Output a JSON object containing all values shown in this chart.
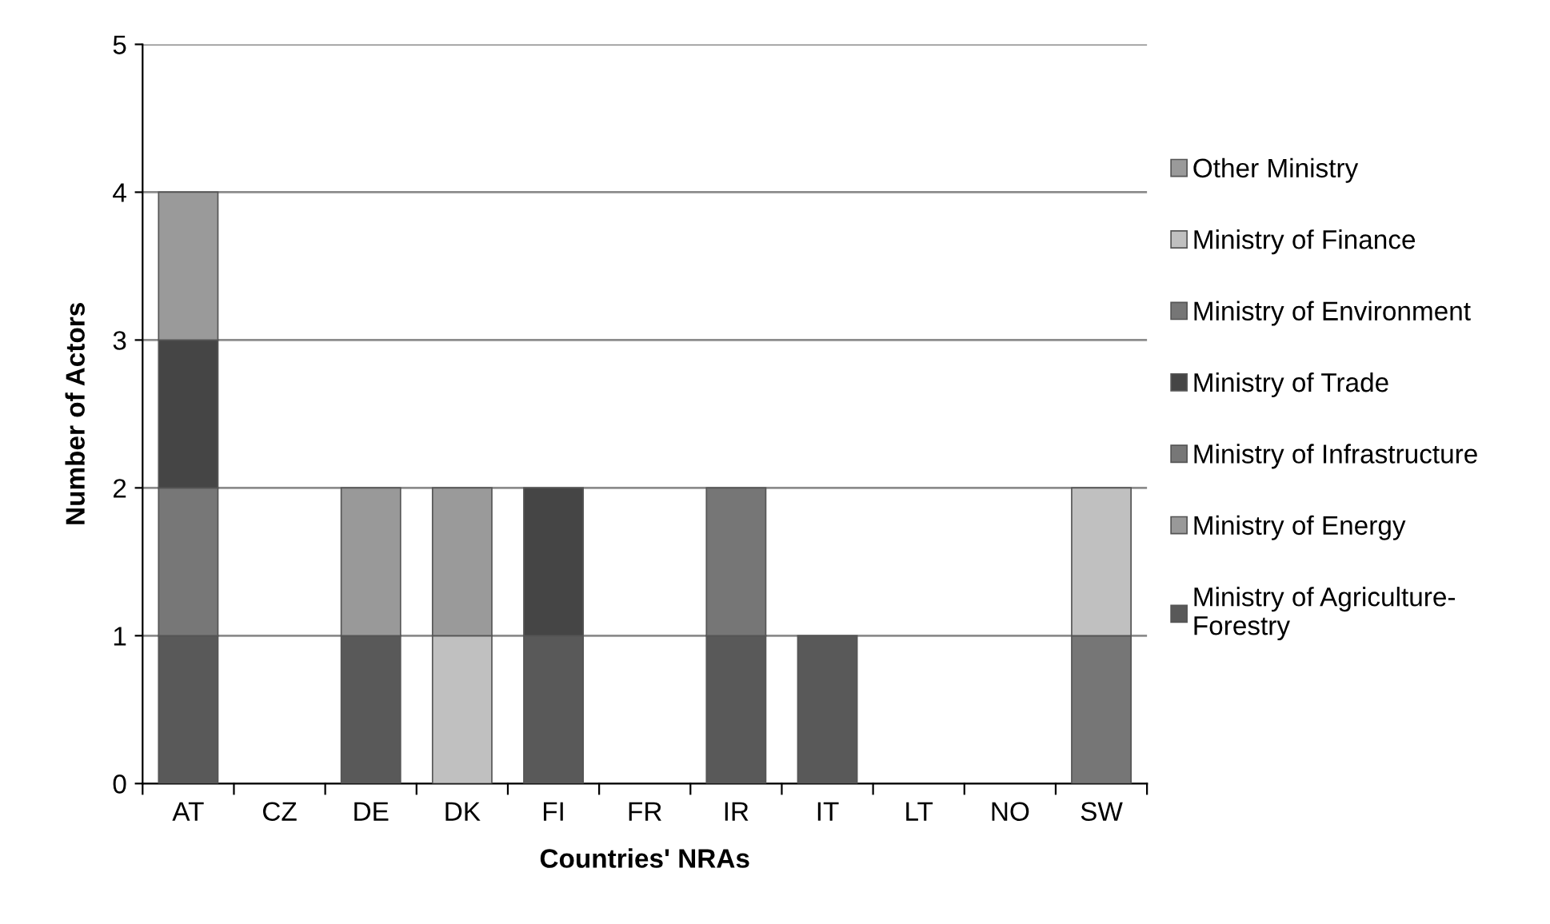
{
  "chart_data": {
    "type": "bar",
    "stacked": true,
    "xlabel": "Countries' NRAs",
    "ylabel": "Number of Actors",
    "categories": [
      "AT",
      "CZ",
      "DE",
      "DK",
      "FI",
      "FR",
      "IR",
      "IT",
      "LT",
      "NO",
      "SW"
    ],
    "series": [
      {
        "name": "Ministry of Agriculture-\nForestry",
        "color": "#595959",
        "values": [
          1,
          0,
          1,
          0,
          1,
          0,
          1,
          1,
          0,
          0,
          0
        ]
      },
      {
        "name": "Ministry of Energy",
        "color": "#999999",
        "values": [
          0,
          0,
          1,
          0,
          0,
          0,
          0,
          0,
          0,
          0,
          0
        ]
      },
      {
        "name": "Ministry of Infrastructure",
        "color": "#777777",
        "values": [
          1,
          0,
          0,
          0,
          0,
          0,
          0,
          0,
          0,
          0,
          0
        ]
      },
      {
        "name": "Ministry of Trade",
        "color": "#454545",
        "values": [
          1,
          0,
          0,
          0,
          1,
          0,
          0,
          0,
          0,
          0,
          0
        ]
      },
      {
        "name": "Ministry of Environment",
        "color": "#767676",
        "values": [
          0,
          0,
          0,
          0,
          0,
          0,
          1,
          0,
          0,
          0,
          1
        ]
      },
      {
        "name": "Ministry of Finance",
        "color": "#c0c0c0",
        "values": [
          0,
          0,
          0,
          1,
          0,
          0,
          0,
          0,
          0,
          0,
          1
        ]
      },
      {
        "name": "Other Ministry",
        "color": "#9a9a9a",
        "values": [
          1,
          0,
          0,
          1,
          0,
          0,
          0,
          0,
          0,
          0,
          0
        ]
      }
    ],
    "ylim": [
      0,
      5
    ],
    "yticks": [
      0,
      1,
      2,
      3,
      4,
      5
    ],
    "grid": "y",
    "legend": "right"
  }
}
